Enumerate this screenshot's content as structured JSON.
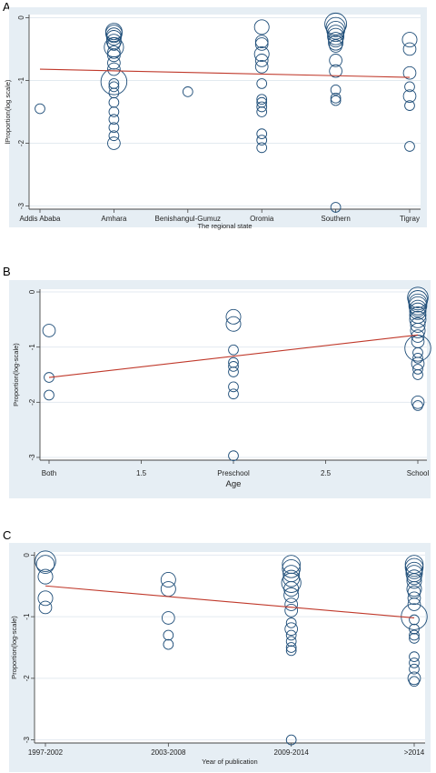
{
  "chart_data": [
    {
      "panel_label": "A",
      "type": "scatter",
      "xlabel": "The regional state",
      "ylabel": "lProportion(log scale)",
      "categories": [
        "Addis Ababa",
        "Amhara",
        "Benishangul-Gumuz",
        "Oromia",
        "Southern",
        "Tigray"
      ],
      "y_ticks": [
        "0",
        "-1",
        "-2",
        "-3"
      ],
      "ylim": [
        -3.05,
        0.05
      ],
      "grid": true,
      "background": "#e6eef4",
      "bubble_color": "#1f4e79",
      "fit_color": "#c0392b",
      "fit_line": {
        "x0": 0,
        "y0": -0.82,
        "x1": 5,
        "y1": -0.95
      },
      "points": [
        {
          "x": 0,
          "y": -1.45,
          "size": 1
        },
        {
          "x": 1,
          "y": -0.22,
          "size": 4
        },
        {
          "x": 1,
          "y": -0.25,
          "size": 4
        },
        {
          "x": 1,
          "y": -0.28,
          "size": 3
        },
        {
          "x": 1,
          "y": -0.32,
          "size": 3
        },
        {
          "x": 1,
          "y": -0.38,
          "size": 3
        },
        {
          "x": 1,
          "y": -0.42,
          "size": 2
        },
        {
          "x": 1,
          "y": -0.47,
          "size": 6
        },
        {
          "x": 1,
          "y": -0.55,
          "size": 2
        },
        {
          "x": 1,
          "y": -0.6,
          "size": 2
        },
        {
          "x": 1,
          "y": -0.72,
          "size": 2
        },
        {
          "x": 1,
          "y": -0.82,
          "size": 2
        },
        {
          "x": 1,
          "y": -1.02,
          "size": 12
        },
        {
          "x": 1,
          "y": -1.05,
          "size": 1
        },
        {
          "x": 1,
          "y": -1.1,
          "size": 1
        },
        {
          "x": 1,
          "y": -1.2,
          "size": 1
        },
        {
          "x": 1,
          "y": -1.35,
          "size": 1
        },
        {
          "x": 1,
          "y": -1.5,
          "size": 1
        },
        {
          "x": 1,
          "y": -1.62,
          "size": 1
        },
        {
          "x": 1,
          "y": -1.75,
          "size": 1
        },
        {
          "x": 1,
          "y": -1.88,
          "size": 1
        },
        {
          "x": 1,
          "y": -2.0,
          "size": 2
        },
        {
          "x": 2,
          "y": -1.18,
          "size": 1
        },
        {
          "x": 3,
          "y": -0.15,
          "size": 3
        },
        {
          "x": 3,
          "y": -0.38,
          "size": 2
        },
        {
          "x": 3,
          "y": -0.42,
          "size": 2
        },
        {
          "x": 3,
          "y": -0.58,
          "size": 3
        },
        {
          "x": 3,
          "y": -0.68,
          "size": 2
        },
        {
          "x": 3,
          "y": -0.78,
          "size": 2
        },
        {
          "x": 3,
          "y": -1.05,
          "size": 1
        },
        {
          "x": 3,
          "y": -1.3,
          "size": 1
        },
        {
          "x": 3,
          "y": -1.35,
          "size": 1
        },
        {
          "x": 3,
          "y": -1.42,
          "size": 1
        },
        {
          "x": 3,
          "y": -1.5,
          "size": 1
        },
        {
          "x": 3,
          "y": -1.85,
          "size": 1
        },
        {
          "x": 3,
          "y": -1.95,
          "size": 1
        },
        {
          "x": 3,
          "y": -2.07,
          "size": 1
        },
        {
          "x": 4,
          "y": -0.1,
          "size": 8
        },
        {
          "x": 4,
          "y": -0.15,
          "size": 6
        },
        {
          "x": 4,
          "y": -0.2,
          "size": 5
        },
        {
          "x": 4,
          "y": -0.25,
          "size": 4
        },
        {
          "x": 4,
          "y": -0.3,
          "size": 4
        },
        {
          "x": 4,
          "y": -0.35,
          "size": 3
        },
        {
          "x": 4,
          "y": -0.4,
          "size": 3
        },
        {
          "x": 4,
          "y": -0.45,
          "size": 2
        },
        {
          "x": 4,
          "y": -0.68,
          "size": 2
        },
        {
          "x": 4,
          "y": -0.85,
          "size": 2
        },
        {
          "x": 4,
          "y": -1.15,
          "size": 1
        },
        {
          "x": 4,
          "y": -1.28,
          "size": 1
        },
        {
          "x": 4,
          "y": -1.32,
          "size": 1
        },
        {
          "x": 4,
          "y": -3.02,
          "size": 1
        },
        {
          "x": 5,
          "y": -0.35,
          "size": 3
        },
        {
          "x": 5,
          "y": -0.5,
          "size": 2
        },
        {
          "x": 5,
          "y": -0.88,
          "size": 2
        },
        {
          "x": 5,
          "y": -1.1,
          "size": 1
        },
        {
          "x": 5,
          "y": -1.25,
          "size": 2
        },
        {
          "x": 5,
          "y": -1.4,
          "size": 1
        },
        {
          "x": 5,
          "y": -2.05,
          "size": 1
        }
      ]
    },
    {
      "panel_label": "B",
      "type": "scatter",
      "xlabel": "Age",
      "ylabel": "Proportion(log-scale)",
      "categories": [
        "Both",
        "1.5",
        "Preschool",
        "2.5",
        "School"
      ],
      "y_ticks": [
        "0",
        "-1",
        "-2",
        "-3"
      ],
      "ylim": [
        -3.05,
        0.05
      ],
      "grid": true,
      "background": "#e6eef4",
      "bubble_color": "#1f4e79",
      "fit_color": "#c0392b",
      "fit_line": {
        "x0": 0,
        "y0": -1.55,
        "x1": 4,
        "y1": -0.78
      },
      "points": [
        {
          "x": 0,
          "y": -0.7,
          "size": 2
        },
        {
          "x": 0,
          "y": -1.55,
          "size": 1
        },
        {
          "x": 0,
          "y": -1.87,
          "size": 1
        },
        {
          "x": 2,
          "y": -0.45,
          "size": 3
        },
        {
          "x": 2,
          "y": -0.58,
          "size": 3
        },
        {
          "x": 2,
          "y": -1.05,
          "size": 1
        },
        {
          "x": 2,
          "y": -1.28,
          "size": 1
        },
        {
          "x": 2,
          "y": -1.35,
          "size": 1
        },
        {
          "x": 2,
          "y": -1.45,
          "size": 1
        },
        {
          "x": 2,
          "y": -1.72,
          "size": 1
        },
        {
          "x": 2,
          "y": -1.85,
          "size": 1
        },
        {
          "x": 2,
          "y": -2.97,
          "size": 1
        },
        {
          "x": 4,
          "y": -0.1,
          "size": 7
        },
        {
          "x": 4,
          "y": -0.15,
          "size": 6
        },
        {
          "x": 4,
          "y": -0.2,
          "size": 5
        },
        {
          "x": 4,
          "y": -0.25,
          "size": 5
        },
        {
          "x": 4,
          "y": -0.3,
          "size": 4
        },
        {
          "x": 4,
          "y": -0.35,
          "size": 4
        },
        {
          "x": 4,
          "y": -0.42,
          "size": 4
        },
        {
          "x": 4,
          "y": -0.5,
          "size": 4
        },
        {
          "x": 4,
          "y": -0.6,
          "size": 3
        },
        {
          "x": 4,
          "y": -0.7,
          "size": 3
        },
        {
          "x": 4,
          "y": -0.8,
          "size": 2
        },
        {
          "x": 4,
          "y": -0.9,
          "size": 2
        },
        {
          "x": 4,
          "y": -1.02,
          "size": 12
        },
        {
          "x": 4,
          "y": -1.1,
          "size": 1
        },
        {
          "x": 4,
          "y": -1.2,
          "size": 1
        },
        {
          "x": 4,
          "y": -1.3,
          "size": 2
        },
        {
          "x": 4,
          "y": -1.4,
          "size": 1
        },
        {
          "x": 4,
          "y": -1.5,
          "size": 1
        },
        {
          "x": 4,
          "y": -2.0,
          "size": 2
        },
        {
          "x": 4,
          "y": -2.06,
          "size": 1
        }
      ]
    },
    {
      "panel_label": "C",
      "type": "scatter",
      "xlabel": "Year of publication",
      "ylabel": "Proportion(log-scale)",
      "categories": [
        "1997-2002",
        "2003-2008",
        "2009-2014",
        ">2014"
      ],
      "y_ticks": [
        "0",
        "-1",
        "-2",
        "-3"
      ],
      "ylim": [
        -3.05,
        0.05
      ],
      "grid": true,
      "background": "#e6eef4",
      "bubble_color": "#1f4e79",
      "fit_color": "#c0392b",
      "fit_line": {
        "x0": 0,
        "y0": -0.5,
        "x1": 3,
        "y1": -1.02
      },
      "points": [
        {
          "x": 0,
          "y": -0.1,
          "size": 7
        },
        {
          "x": 0,
          "y": -0.15,
          "size": 5
        },
        {
          "x": 0,
          "y": -0.35,
          "size": 3
        },
        {
          "x": 0,
          "y": -0.7,
          "size": 3
        },
        {
          "x": 0,
          "y": -0.85,
          "size": 2
        },
        {
          "x": 1,
          "y": -0.4,
          "size": 3
        },
        {
          "x": 1,
          "y": -0.55,
          "size": 3
        },
        {
          "x": 1,
          "y": -1.02,
          "size": 2
        },
        {
          "x": 1,
          "y": -1.3,
          "size": 1
        },
        {
          "x": 1,
          "y": -1.45,
          "size": 1
        },
        {
          "x": 2,
          "y": -0.15,
          "size": 5
        },
        {
          "x": 2,
          "y": -0.22,
          "size": 5
        },
        {
          "x": 2,
          "y": -0.3,
          "size": 4
        },
        {
          "x": 2,
          "y": -0.38,
          "size": 4
        },
        {
          "x": 2,
          "y": -0.45,
          "size": 6
        },
        {
          "x": 2,
          "y": -0.55,
          "size": 3
        },
        {
          "x": 2,
          "y": -0.65,
          "size": 3
        },
        {
          "x": 2,
          "y": -0.8,
          "size": 2
        },
        {
          "x": 2,
          "y": -0.9,
          "size": 2
        },
        {
          "x": 2,
          "y": -1.1,
          "size": 1
        },
        {
          "x": 2,
          "y": -1.2,
          "size": 2
        },
        {
          "x": 2,
          "y": -1.3,
          "size": 1
        },
        {
          "x": 2,
          "y": -1.4,
          "size": 1
        },
        {
          "x": 2,
          "y": -1.5,
          "size": 1
        },
        {
          "x": 2,
          "y": -1.55,
          "size": 1
        },
        {
          "x": 2,
          "y": -3.0,
          "size": 1
        },
        {
          "x": 3,
          "y": -0.15,
          "size": 5
        },
        {
          "x": 3,
          "y": -0.2,
          "size": 5
        },
        {
          "x": 3,
          "y": -0.25,
          "size": 4
        },
        {
          "x": 3,
          "y": -0.3,
          "size": 4
        },
        {
          "x": 3,
          "y": -0.36,
          "size": 3
        },
        {
          "x": 3,
          "y": -0.42,
          "size": 3
        },
        {
          "x": 3,
          "y": -0.55,
          "size": 3
        },
        {
          "x": 3,
          "y": -0.6,
          "size": 2
        },
        {
          "x": 3,
          "y": -0.7,
          "size": 2
        },
        {
          "x": 3,
          "y": -0.8,
          "size": 2
        },
        {
          "x": 3,
          "y": -1.0,
          "size": 12
        },
        {
          "x": 3,
          "y": -1.05,
          "size": 1
        },
        {
          "x": 3,
          "y": -1.2,
          "size": 1
        },
        {
          "x": 3,
          "y": -1.3,
          "size": 1
        },
        {
          "x": 3,
          "y": -1.35,
          "size": 1
        },
        {
          "x": 3,
          "y": -1.65,
          "size": 1
        },
        {
          "x": 3,
          "y": -1.75,
          "size": 1
        },
        {
          "x": 3,
          "y": -1.85,
          "size": 1
        },
        {
          "x": 3,
          "y": -2.0,
          "size": 2
        },
        {
          "x": 3,
          "y": -2.05,
          "size": 1
        }
      ]
    }
  ]
}
